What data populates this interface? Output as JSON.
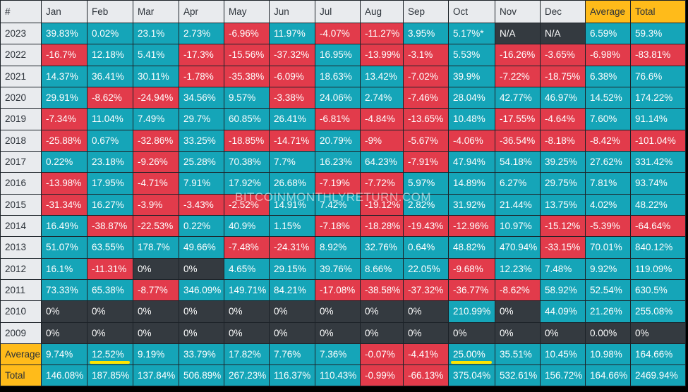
{
  "chart_data": {
    "type": "table",
    "header": [
      "#",
      "Jan",
      "Feb",
      "Mar",
      "Apr",
      "May",
      "Jun",
      "Jul",
      "Aug",
      "Sep",
      "Oct",
      "Nov",
      "Dec",
      "Average",
      "Total"
    ],
    "rows": [
      {
        "label": "2023",
        "values": [
          "39.83%",
          "0.02%",
          "23.1%",
          "2.73%",
          "-6.96%",
          "11.97%",
          "-4.07%",
          "-11.27%",
          "3.95%",
          "5.17%*",
          "N/A",
          "N/A",
          "6.59%",
          "59.3%"
        ]
      },
      {
        "label": "2022",
        "values": [
          "-16.7%",
          "12.18%",
          "5.41%",
          "-17.3%",
          "-15.56%",
          "-37.32%",
          "16.95%",
          "-13.99%",
          "-3.1%",
          "5.53%",
          "-16.26%",
          "-3.65%",
          "-6.98%",
          "-83.81%"
        ]
      },
      {
        "label": "2021",
        "values": [
          "14.37%",
          "36.41%",
          "30.11%",
          "-1.78%",
          "-35.38%",
          "-6.09%",
          "18.63%",
          "13.42%",
          "-7.02%",
          "39.9%",
          "-7.22%",
          "-18.75%",
          "6.38%",
          "76.6%"
        ]
      },
      {
        "label": "2020",
        "values": [
          "29.91%",
          "-8.62%",
          "-24.94%",
          "34.56%",
          "9.57%",
          "-3.38%",
          "24.06%",
          "2.74%",
          "-7.46%",
          "28.04%",
          "42.77%",
          "46.97%",
          "14.52%",
          "174.22%"
        ]
      },
      {
        "label": "2019",
        "values": [
          "-7.34%",
          "11.04%",
          "7.49%",
          "29.7%",
          "60.85%",
          "26.41%",
          "-6.81%",
          "-4.84%",
          "-13.65%",
          "10.48%",
          "-17.55%",
          "-4.64%",
          "7.60%",
          "91.14%"
        ]
      },
      {
        "label": "2018",
        "values": [
          "-25.88%",
          "0.67%",
          "-32.86%",
          "33.25%",
          "-18.85%",
          "-14.71%",
          "20.79%",
          "-9%",
          "-5.67%",
          "-4.06%",
          "-36.54%",
          "-8.18%",
          "-8.42%",
          "-101.04%"
        ]
      },
      {
        "label": "2017",
        "values": [
          "0.22%",
          "23.18%",
          "-9.26%",
          "25.28%",
          "70.38%",
          "7.7%",
          "16.23%",
          "64.23%",
          "-7.91%",
          "47.94%",
          "54.18%",
          "39.25%",
          "27.62%",
          "331.42%"
        ]
      },
      {
        "label": "2016",
        "values": [
          "-13.98%",
          "17.95%",
          "-4.71%",
          "7.91%",
          "17.92%",
          "26.68%",
          "-7.19%",
          "-7.72%",
          "5.97%",
          "14.89%",
          "6.27%",
          "29.75%",
          "7.81%",
          "93.74%"
        ]
      },
      {
        "label": "2015",
        "values": [
          "-31.34%",
          "16.27%",
          "-3.9%",
          "-3.43%",
          "-2.52%",
          "14.91%",
          "7.42%",
          "-19.12%",
          "2.82%",
          "31.92%",
          "21.44%",
          "13.75%",
          "4.02%",
          "48.22%"
        ]
      },
      {
        "label": "2014",
        "values": [
          "16.49%",
          "-38.87%",
          "-22.53%",
          "0.22%",
          "40.9%",
          "1.15%",
          "-7.18%",
          "-18.28%",
          "-19.43%",
          "-12.96%",
          "10.97%",
          "-15.12%",
          "-5.39%",
          "-64.64%"
        ]
      },
      {
        "label": "2013",
        "values": [
          "51.07%",
          "63.55%",
          "178.7%",
          "49.66%",
          "-7.48%",
          "-24.31%",
          "8.92%",
          "32.76%",
          "0.64%",
          "48.82%",
          "470.94%",
          "-33.15%",
          "70.01%",
          "840.12%"
        ]
      },
      {
        "label": "2012",
        "values": [
          "16.1%",
          "-11.31%",
          "0%",
          "0%",
          "4.65%",
          "29.15%",
          "39.76%",
          "8.66%",
          "22.05%",
          "-9.68%",
          "12.23%",
          "7.48%",
          "9.92%",
          "119.09%"
        ]
      },
      {
        "label": "2011",
        "values": [
          "73.33%",
          "65.38%",
          "-8.77%",
          "346.09%",
          "149.71%",
          "84.21%",
          "-17.08%",
          "-38.58%",
          "-37.32%",
          "-36.77%",
          "-8.62%",
          "58.92%",
          "52.54%",
          "630.5%"
        ]
      },
      {
        "label": "2010",
        "values": [
          "0%",
          "0%",
          "0%",
          "0%",
          "0%",
          "0%",
          "0%",
          "0%",
          "0%",
          "210.99%",
          "0%",
          "44.09%",
          "21.26%",
          "255.08%"
        ]
      },
      {
        "label": "2009",
        "values": [
          "0%",
          "0%",
          "0%",
          "0%",
          "0%",
          "0%",
          "0%",
          "0%",
          "0%",
          "0%",
          "0%",
          "0%",
          "0.00%",
          "0%"
        ]
      }
    ],
    "footer": [
      {
        "label": "Average",
        "values": [
          "9.74%",
          "12.52%",
          "9.19%",
          "33.79%",
          "17.82%",
          "7.76%",
          "7.36%",
          "-0.07%",
          "-4.41%",
          "25.00%",
          "35.51%",
          "10.45%",
          "10.98%",
          "164.66%"
        ]
      },
      {
        "label": "Total",
        "values": [
          "146.08%",
          "187.85%",
          "137.84%",
          "506.89%",
          "267.23%",
          "116.37%",
          "110.43%",
          "-0.99%",
          "-66.13%",
          "375.04%",
          "532.61%",
          "156.72%",
          "164.66%",
          "2469.94%"
        ]
      }
    ],
    "highlighted_columns": [
      "Average",
      "Total"
    ],
    "underlined_cells": [
      {
        "row": "Average",
        "column": "Feb"
      },
      {
        "row": "Average",
        "column": "Oct"
      }
    ],
    "colors": {
      "positive": "#15a5b8",
      "negative": "#e23b4b",
      "zero": "#343a40",
      "header": "#e9ebee",
      "highlight": "#ffbb1a",
      "underline": "#ffe500"
    }
  },
  "watermark": "BITCOINMONTHLYRETURN.COM"
}
